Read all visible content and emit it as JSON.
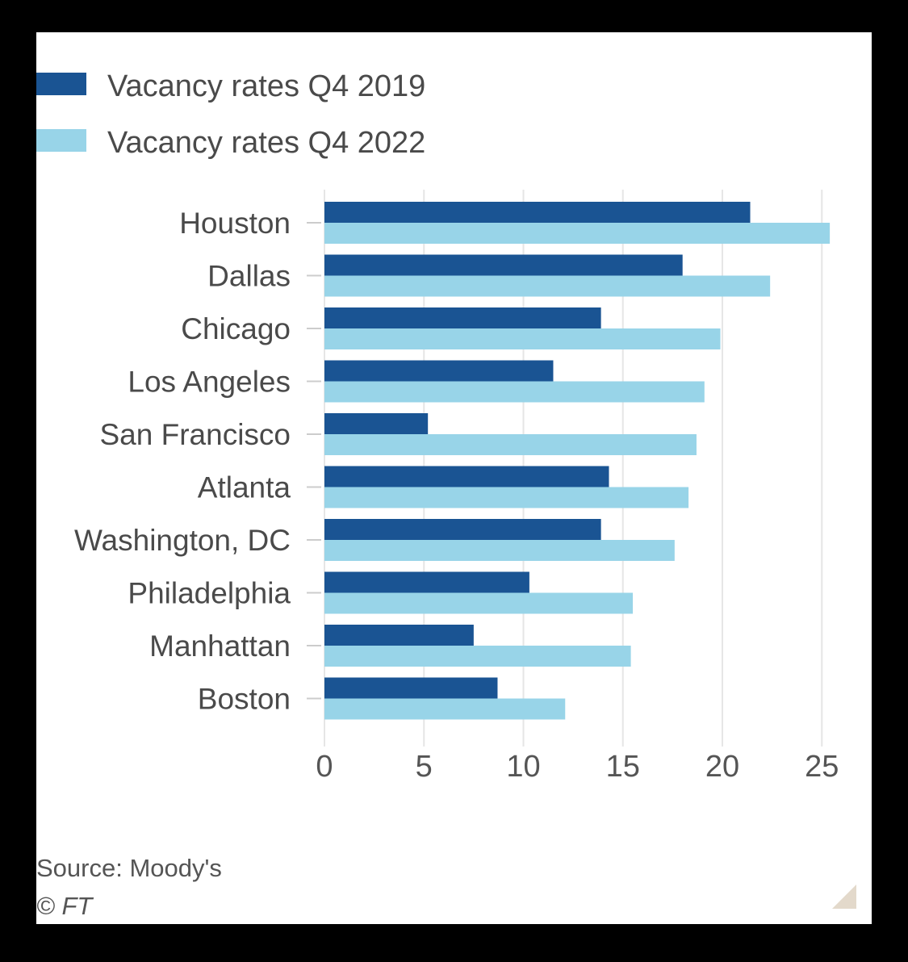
{
  "chart_data": {
    "type": "bar",
    "orientation": "horizontal",
    "categories": [
      "Houston",
      "Dallas",
      "Chicago",
      "Los Angeles",
      "San Francisco",
      "Atlanta",
      "Washington, DC",
      "Philadelphia",
      "Manhattan",
      "Boston"
    ],
    "series": [
      {
        "name": "Vacancy rates Q4 2019",
        "color": "#1a5493",
        "values": [
          21.4,
          18.0,
          13.9,
          11.5,
          5.2,
          14.3,
          13.9,
          10.3,
          7.5,
          8.7
        ]
      },
      {
        "name": "Vacancy rates Q4 2022",
        "color": "#98d4e8",
        "values": [
          25.4,
          22.4,
          19.9,
          19.1,
          18.7,
          18.3,
          17.6,
          15.5,
          15.4,
          12.1
        ]
      }
    ],
    "xlim": [
      0,
      25
    ],
    "xticks": [
      "0",
      "5",
      "10",
      "15",
      "20",
      "25"
    ],
    "grid": true,
    "legend_position": "top-left"
  },
  "footer": {
    "source": "Source: Moody's",
    "credit": "© FT"
  },
  "colors": {
    "background": "#ffffff",
    "grid": "#e6e6e6",
    "text": "#4a4a4a",
    "corner_mark": "#e3d9cb"
  }
}
